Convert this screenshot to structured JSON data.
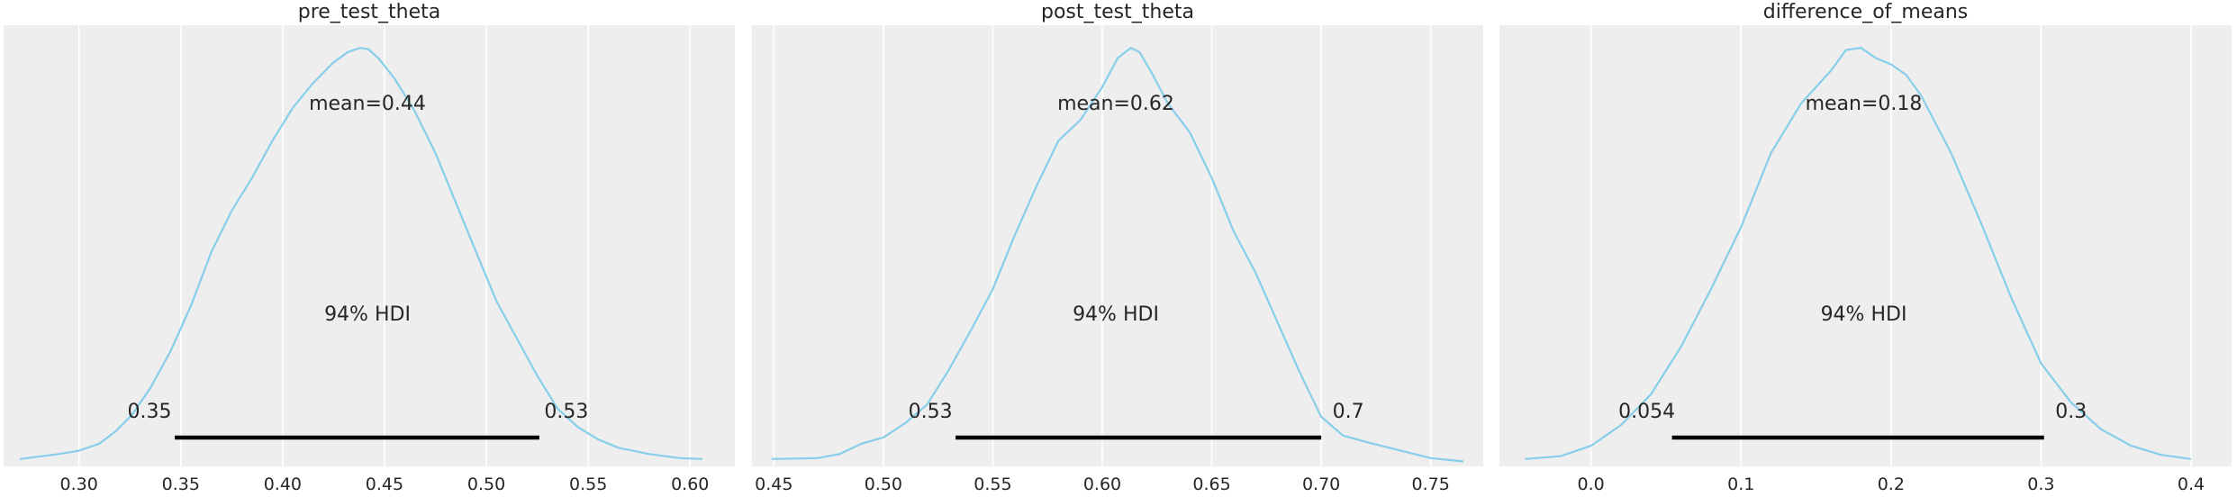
{
  "colors": {
    "panel_bg": "#eeeeee",
    "grid": "#ffffff",
    "curve": "#87ceeb",
    "hdi_bar": "#000000",
    "text": "#262626"
  },
  "chart_data": [
    {
      "type": "area",
      "title": "pre_test_theta",
      "xlim": [
        0.263,
        0.622
      ],
      "ylim": [
        0,
        1.07
      ],
      "ticks": [
        0.3,
        0.35,
        0.4,
        0.45,
        0.5,
        0.55,
        0.6
      ],
      "tick_labels": [
        "0.30",
        "0.35",
        "0.40",
        "0.45",
        "0.50",
        "0.55",
        "0.60"
      ],
      "mean_label": "mean=0.44",
      "hdi_label": "94% HDI",
      "hdi": [
        0.347,
        0.526
      ],
      "hdi_labels": [
        "0.35",
        "0.53"
      ],
      "curve": {
        "x": [
          0.271,
          0.29,
          0.3,
          0.31,
          0.318,
          0.326,
          0.335,
          0.345,
          0.355,
          0.365,
          0.375,
          0.385,
          0.395,
          0.405,
          0.415,
          0.425,
          0.432,
          0.438,
          0.442,
          0.447,
          0.455,
          0.465,
          0.475,
          0.485,
          0.495,
          0.505,
          0.515,
          0.525,
          0.535,
          0.545,
          0.555,
          0.565,
          0.58,
          0.595,
          0.606
        ],
        "y": [
          0.018,
          0.03,
          0.038,
          0.055,
          0.085,
          0.125,
          0.19,
          0.28,
          0.39,
          0.52,
          0.62,
          0.7,
          0.79,
          0.87,
          0.93,
          0.98,
          1.005,
          1.015,
          1.012,
          0.99,
          0.94,
          0.86,
          0.76,
          0.64,
          0.52,
          0.4,
          0.31,
          0.22,
          0.14,
          0.095,
          0.065,
          0.045,
          0.03,
          0.02,
          0.018
        ]
      }
    },
    {
      "type": "area",
      "title": "post_test_theta",
      "xlim": [
        0.44,
        0.774
      ],
      "ylim": [
        0,
        1.07
      ],
      "ticks": [
        0.45,
        0.5,
        0.55,
        0.6,
        0.65,
        0.7,
        0.75
      ],
      "tick_labels": [
        "0.45",
        "0.50",
        "0.55",
        "0.60",
        "0.65",
        "0.70",
        "0.75"
      ],
      "mean_label": "mean=0.62",
      "hdi_label": "94% HDI",
      "hdi": [
        0.533,
        0.7
      ],
      "hdi_labels": [
        "0.53",
        "0.7"
      ],
      "curve": {
        "x": [
          0.449,
          0.47,
          0.48,
          0.49,
          0.5,
          0.51,
          0.52,
          0.53,
          0.54,
          0.55,
          0.56,
          0.57,
          0.58,
          0.59,
          0.6,
          0.607,
          0.613,
          0.617,
          0.622,
          0.63,
          0.64,
          0.65,
          0.66,
          0.67,
          0.68,
          0.69,
          0.7,
          0.71,
          0.72,
          0.735,
          0.75,
          0.765
        ],
        "y": [
          0.018,
          0.02,
          0.03,
          0.055,
          0.07,
          0.105,
          0.15,
          0.235,
          0.33,
          0.43,
          0.56,
          0.68,
          0.79,
          0.84,
          0.92,
          0.99,
          1.015,
          1.005,
          0.96,
          0.88,
          0.81,
          0.7,
          0.57,
          0.47,
          0.35,
          0.23,
          0.12,
          0.075,
          0.06,
          0.04,
          0.02,
          0.012
        ]
      }
    },
    {
      "type": "area",
      "title": "difference_of_means",
      "xlim": [
        -0.061,
        0.427
      ],
      "ylim": [
        0,
        1.07
      ],
      "ticks": [
        0.0,
        0.1,
        0.2,
        0.3,
        0.4
      ],
      "tick_labels": [
        "0.0",
        "0.1",
        "0.2",
        "0.3",
        "0.4"
      ],
      "mean_label": "mean=0.18",
      "hdi_label": "94% HDI",
      "hdi": [
        0.054,
        0.302
      ],
      "hdi_labels": [
        "0.054",
        "0.3"
      ],
      "curve": {
        "x": [
          -0.044,
          -0.02,
          0.0,
          0.02,
          0.04,
          0.06,
          0.08,
          0.1,
          0.12,
          0.14,
          0.16,
          0.17,
          0.18,
          0.19,
          0.2,
          0.21,
          0.22,
          0.24,
          0.26,
          0.28,
          0.3,
          0.32,
          0.34,
          0.36,
          0.38,
          0.4
        ],
        "y": [
          0.018,
          0.025,
          0.05,
          0.1,
          0.175,
          0.29,
          0.43,
          0.58,
          0.76,
          0.88,
          0.96,
          1.01,
          1.015,
          0.99,
          0.975,
          0.95,
          0.9,
          0.76,
          0.59,
          0.41,
          0.25,
          0.155,
          0.09,
          0.05,
          0.028,
          0.018
        ]
      }
    }
  ]
}
